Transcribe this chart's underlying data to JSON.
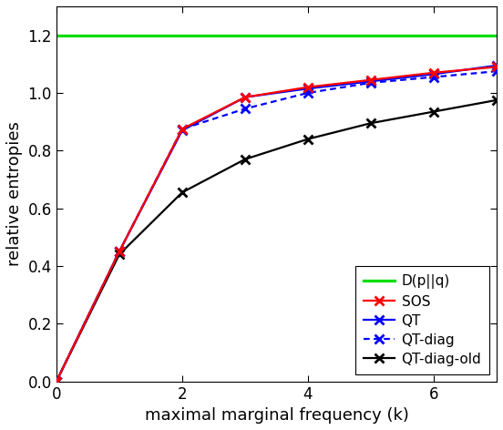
{
  "title": "",
  "xlabel": "maximal marginal frequency (k)",
  "ylabel": "relative entropies",
  "xlim": [
    0,
    7
  ],
  "ylim": [
    0,
    1.3
  ],
  "yticks": [
    0,
    0.2,
    0.4,
    0.6,
    0.8,
    1.0,
    1.2
  ],
  "xticks": [
    0,
    2,
    4,
    6
  ],
  "dpq_value": 1.2,
  "dpq_color": "#00dd00",
  "sos_x": [
    0,
    1,
    2,
    3,
    4,
    5,
    6,
    7
  ],
  "sos_y": [
    0.0,
    0.45,
    0.875,
    0.985,
    1.02,
    1.045,
    1.07,
    1.09
  ],
  "sos_color": "#ff0000",
  "qt_x": [
    0,
    1,
    2,
    3,
    4,
    5,
    6,
    7
  ],
  "qt_y": [
    0.0,
    0.45,
    0.87,
    0.985,
    1.015,
    1.04,
    1.065,
    1.095
  ],
  "qt_color": "#0000ff",
  "qt_diag_x": [
    0,
    1,
    2,
    3,
    4,
    5,
    6,
    7
  ],
  "qt_diag_y": [
    0.0,
    0.45,
    0.875,
    0.945,
    1.0,
    1.035,
    1.055,
    1.075
  ],
  "qt_diag_color": "#0000ff",
  "qt_diag_old_x": [
    0,
    1,
    2,
    3,
    4,
    5,
    6,
    7
  ],
  "qt_diag_old_y": [
    0.0,
    0.44,
    0.655,
    0.77,
    0.84,
    0.895,
    0.935,
    0.975
  ],
  "qt_diag_old_color": "#000000",
  "background_color": "#ffffff",
  "marker": "x",
  "markersize": 7,
  "markeredgewidth": 2.0,
  "linewidth": 1.6,
  "legend_fontsize": 11,
  "axis_fontsize": 13,
  "tick_fontsize": 12
}
